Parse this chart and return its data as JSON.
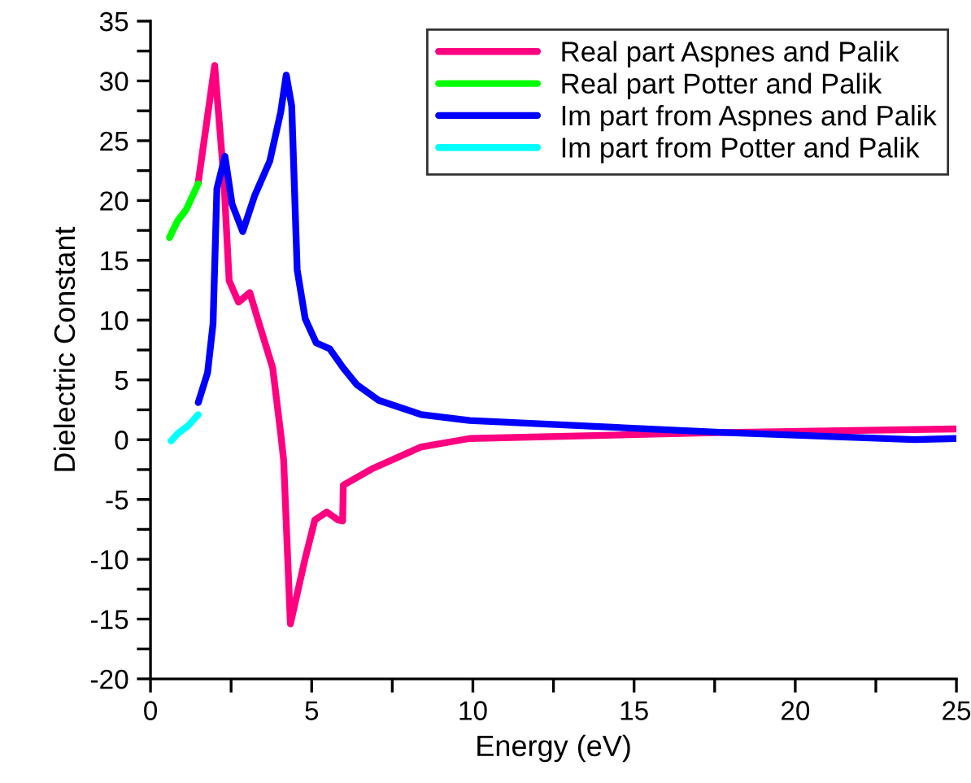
{
  "chart_data": {
    "type": "line",
    "xlabel": "Energy (eV)",
    "ylabel": "Dielectric Constant",
    "xlim": [
      0,
      25
    ],
    "ylim": [
      -20,
      35
    ],
    "xticks": [
      0,
      {
        "value": 2.5,
        "label": null
      },
      5,
      {
        "value": 7.5,
        "label": null
      },
      10,
      {
        "value": 12.5,
        "label": null
      },
      15,
      {
        "value": 17.5,
        "label": null
      },
      20,
      {
        "value": 22.5,
        "label": null
      },
      25
    ],
    "yticks": [
      -20,
      {
        "value": -17.5,
        "label": null
      },
      -15,
      {
        "value": -12.5,
        "label": null
      },
      -10,
      {
        "value": -7.5,
        "label": null
      },
      -5,
      {
        "value": -2.5,
        "label": null
      },
      0,
      {
        "value": 2.5,
        "label": null
      },
      5,
      {
        "value": 7.5,
        "label": null
      },
      10,
      {
        "value": 12.5,
        "label": null
      },
      15,
      {
        "value": 17.5,
        "label": null
      },
      20,
      {
        "value": 22.5,
        "label": null
      },
      25,
      {
        "value": 27.5,
        "label": null
      },
      30,
      {
        "value": 32.5,
        "label": null
      },
      35
    ],
    "legend": "top right",
    "grid": false,
    "marker": "none",
    "line_style": "solid",
    "series": [
      {
        "name": "Real part Aspnes and Palik",
        "color": "#ff0080",
        "x": [
          1.48,
          1.99,
          2.27,
          2.44,
          2.73,
          3.08,
          3.37,
          3.79,
          4.04,
          4.13,
          4.34,
          4.8,
          5.1,
          5.47,
          5.81,
          5.96,
          5.98,
          6.9,
          8.4,
          9.9,
          17.8,
          25
        ],
        "values": [
          21.5,
          31.3,
          22,
          13.3,
          11.5,
          12.3,
          9.7,
          6.0,
          0.5,
          -1.7,
          -15.4,
          -9.9,
          -6.7,
          -6.05,
          -6.7,
          -6.8,
          -3.8,
          -2.4,
          -0.6,
          0.1,
          0.6,
          0.9
        ]
      },
      {
        "name": "Real part Potter and Palik",
        "color": "#00ff00",
        "x": [
          0.59,
          0.84,
          1.1,
          1.48
        ],
        "values": [
          16.9,
          18.3,
          19.2,
          21.4
        ]
      },
      {
        "name": "Im part from Aspnes and Palik",
        "color": "#0000ff",
        "x": [
          1.48,
          1.77,
          1.94,
          2.06,
          2.31,
          2.53,
          2.86,
          3.23,
          3.7,
          4.04,
          4.21,
          4.38,
          4.55,
          4.8,
          5.14,
          5.56,
          5.98,
          6.4,
          7.07,
          8.4,
          9.9,
          17.8,
          23.7,
          25
        ],
        "values": [
          3.1,
          5.6,
          9.7,
          21,
          23.7,
          19.7,
          17.4,
          20.4,
          23.3,
          27.4,
          30.5,
          27.9,
          14.2,
          10.1,
          8.1,
          7.6,
          6.0,
          4.6,
          3.3,
          2.1,
          1.6,
          0.6,
          0.0,
          0.1
        ]
      },
      {
        "name": "Im part from Potter and Palik",
        "color": "#00ffff",
        "x": [
          0.64,
          0.84,
          1.18,
          1.48
        ],
        "values": [
          -0.1,
          0.5,
          1.2,
          2.1
        ]
      }
    ]
  }
}
